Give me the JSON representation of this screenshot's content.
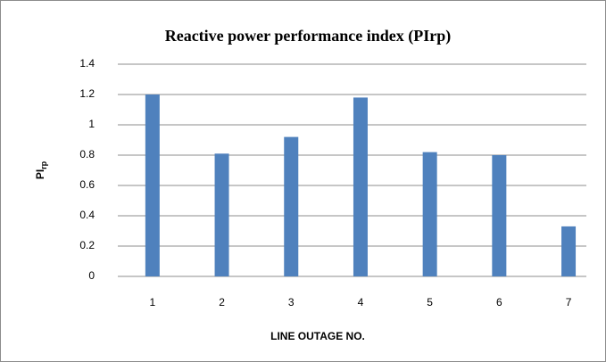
{
  "chart_data": {
    "type": "bar",
    "title": "Reactive power  performance index (PIrp)",
    "y_label": {
      "text": "PI",
      "subscript": "rp"
    },
    "x_label": "LINE OUTAGE NO.",
    "categories": [
      "1",
      "2",
      "3",
      "4",
      "5",
      "6",
      "7"
    ],
    "values": [
      1.2,
      0.81,
      0.92,
      1.18,
      0.82,
      0.8,
      0.33
    ],
    "color": "#4f81bd",
    "ylim": [
      0,
      1.4
    ],
    "yticks": [
      0,
      0.2,
      0.4,
      0.6,
      0.8,
      1,
      1.2,
      1.4
    ],
    "grid": true
  }
}
